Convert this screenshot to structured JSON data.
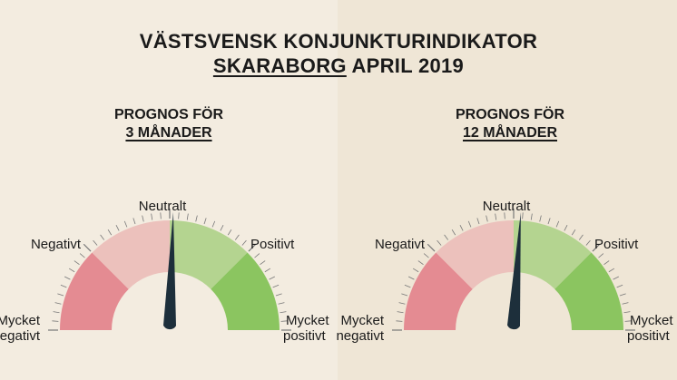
{
  "title": {
    "line1": "VÄSTSVENSK KONJUNKTURINDIKATOR",
    "region": "SKARABORG",
    "period": "APRIL 2019"
  },
  "colors": {
    "panel_left": "#f3ece0",
    "panel_right": "#efe6d6",
    "very_negative": "#e48b92",
    "negative": "#ecc1bc",
    "positive": "#b4d490",
    "very_positive": "#8bc560",
    "needle": "#1d2f3b",
    "ticks": "#777777"
  },
  "chart_data": [
    {
      "type": "gauge",
      "subtitle_line1": "PROGNOS FÖR",
      "subtitle_line2": "3 MÅNADER",
      "scale_labels": [
        "Mycket negativt",
        "Negativt",
        "Neutralt",
        "Positivt",
        "Mycket positivt"
      ],
      "range": [
        -100,
        100
      ],
      "value": 2
    },
    {
      "type": "gauge",
      "subtitle_line1": "PROGNOS FÖR",
      "subtitle_line2": "12 MÅNADER",
      "scale_labels": [
        "Mycket negativt",
        "Negativt",
        "Neutralt",
        "Positivt",
        "Mycket positivt"
      ],
      "range": [
        -100,
        100
      ],
      "value": 4
    }
  ]
}
